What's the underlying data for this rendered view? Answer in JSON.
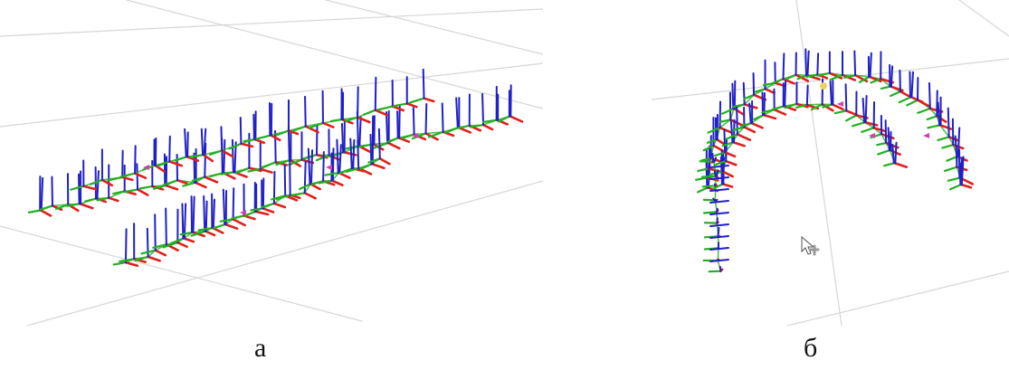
{
  "figure": {
    "panels": [
      {
        "caption": "а",
        "content": "3d-pose-axes-two-parallel-strips"
      },
      {
        "caption": "б",
        "content": "3d-pose-axes-arch-loop"
      }
    ],
    "axis_colors": {
      "x": "#e0201b",
      "y": "#22b020",
      "z": "#2020c8",
      "origin": "#d040b0"
    },
    "grid_color": "#d6d6d6",
    "cursor_icon": "pointer-arrow-icon"
  }
}
